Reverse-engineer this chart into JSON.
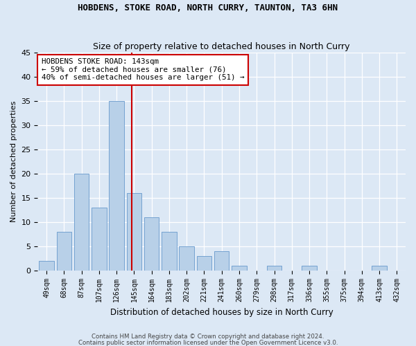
{
  "title": "HOBDENS, STOKE ROAD, NORTH CURRY, TAUNTON, TA3 6HN",
  "subtitle": "Size of property relative to detached houses in North Curry",
  "xlabel": "Distribution of detached houses by size in North Curry",
  "ylabel": "Number of detached properties",
  "bar_color": "#b8d0e8",
  "bar_edge_color": "#6699cc",
  "annotation_line_color": "#cc0000",
  "categories": [
    "49sqm",
    "68sqm",
    "87sqm",
    "107sqm",
    "126sqm",
    "145sqm",
    "164sqm",
    "183sqm",
    "202sqm",
    "221sqm",
    "241sqm",
    "260sqm",
    "279sqm",
    "298sqm",
    "317sqm",
    "336sqm",
    "355sqm",
    "375sqm",
    "394sqm",
    "413sqm",
    "432sqm"
  ],
  "values": [
    2,
    8,
    20,
    13,
    35,
    16,
    11,
    8,
    5,
    3,
    4,
    1,
    0,
    1,
    0,
    1,
    0,
    0,
    0,
    1,
    0
  ],
  "highlight_bar_index": 4,
  "annotation_line_bar_index": 5,
  "ylim": [
    0,
    45
  ],
  "yticks": [
    0,
    5,
    10,
    15,
    20,
    25,
    30,
    35,
    40,
    45
  ],
  "annotation_box_text": "HOBDENS STOKE ROAD: 143sqm\n← 59% of detached houses are smaller (76)\n40% of semi-detached houses are larger (51) →",
  "annotation_box_color": "#ffffff",
  "annotation_box_edge_color": "#cc0000",
  "footer_line1": "Contains HM Land Registry data © Crown copyright and database right 2024.",
  "footer_line2": "Contains public sector information licensed under the Open Government Licence v3.0.",
  "background_color": "#dce8f5",
  "grid_color": "#ffffff"
}
